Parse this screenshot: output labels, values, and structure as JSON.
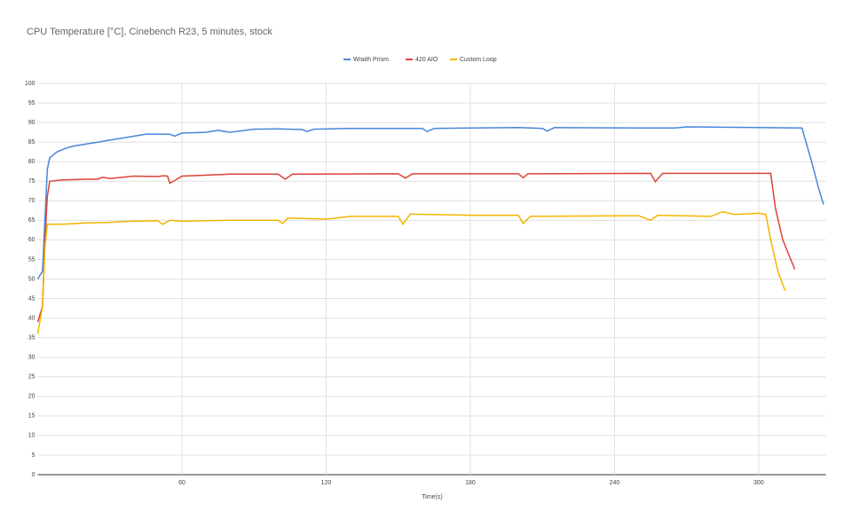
{
  "chart_data": {
    "type": "line",
    "title": "CPU Temperature [°C], Cinebench R23, 5 minutes, stock",
    "x_label": "Time(s)",
    "xlim": [
      0,
      328
    ],
    "xticks": [
      60,
      120,
      180,
      240,
      300
    ],
    "ylim": [
      0,
      100
    ],
    "yticks": [
      0,
      5,
      10,
      15,
      20,
      25,
      30,
      35,
      40,
      45,
      50,
      55,
      60,
      65,
      70,
      75,
      80,
      85,
      90,
      95,
      100
    ],
    "grid": true,
    "legend": "top",
    "series": [
      {
        "name": "Wraith Prism",
        "color": "#4a86d8",
        "x": [
          0,
          2,
          3,
          4,
          5,
          8,
          12,
          15,
          20,
          25,
          30,
          35,
          40,
          45,
          50,
          55,
          57,
          60,
          70,
          75,
          80,
          90,
          100,
          110,
          112,
          115,
          130,
          150,
          160,
          162,
          165,
          200,
          210,
          212,
          215,
          250,
          265,
          270,
          300,
          318,
          322,
          325,
          327
        ],
        "values": [
          50,
          52,
          65,
          78,
          81,
          82.5,
          83.5,
          84,
          84.5,
          85,
          85.5,
          86,
          86.5,
          87,
          87,
          87,
          86.5,
          87.3,
          87.5,
          88,
          87.5,
          88.3,
          88.4,
          88.2,
          87.7,
          88.3,
          88.5,
          88.5,
          88.5,
          87.7,
          88.5,
          88.7,
          88.5,
          87.8,
          88.7,
          88.6,
          88.6,
          88.9,
          88.7,
          88.6,
          80,
          73,
          69
        ]
      },
      {
        "name": "420 AIO",
        "color": "#db4437",
        "x": [
          0,
          2,
          3,
          4,
          5,
          10,
          20,
          25,
          27,
          30,
          40,
          50,
          52,
          54,
          55,
          57,
          60,
          80,
          100,
          103,
          106,
          150,
          153,
          156,
          200,
          202,
          204,
          255,
          257,
          260,
          305,
          307,
          310,
          315
        ],
        "values": [
          39,
          43,
          60,
          71,
          75,
          75.3,
          75.5,
          75.5,
          76,
          75.7,
          76.3,
          76.2,
          76.4,
          76.3,
          74.5,
          75.2,
          76.3,
          76.8,
          76.8,
          75.5,
          76.8,
          76.9,
          75.8,
          76.9,
          76.9,
          75.9,
          76.9,
          77,
          74.9,
          77,
          77,
          68,
          60,
          52.5
        ]
      },
      {
        "name": "Custom Loop",
        "color": "#f4b400",
        "x": [
          0,
          2,
          3,
          4,
          10,
          20,
          30,
          40,
          50,
          52,
          55,
          60,
          80,
          100,
          102,
          104,
          120,
          130,
          150,
          152,
          155,
          180,
          200,
          202,
          205,
          250,
          255,
          258,
          280,
          285,
          290,
          300,
          303,
          305,
          308,
          311
        ],
        "values": [
          36,
          43,
          58,
          64,
          64,
          64.3,
          64.5,
          64.8,
          64.9,
          64,
          65,
          64.8,
          65,
          65,
          64.2,
          65.6,
          65.3,
          66,
          66,
          64,
          66.6,
          66.3,
          66.3,
          64.2,
          66,
          66.2,
          65,
          66.3,
          66,
          67.2,
          66.5,
          66.8,
          66.5,
          60,
          52,
          47
        ]
      }
    ]
  }
}
